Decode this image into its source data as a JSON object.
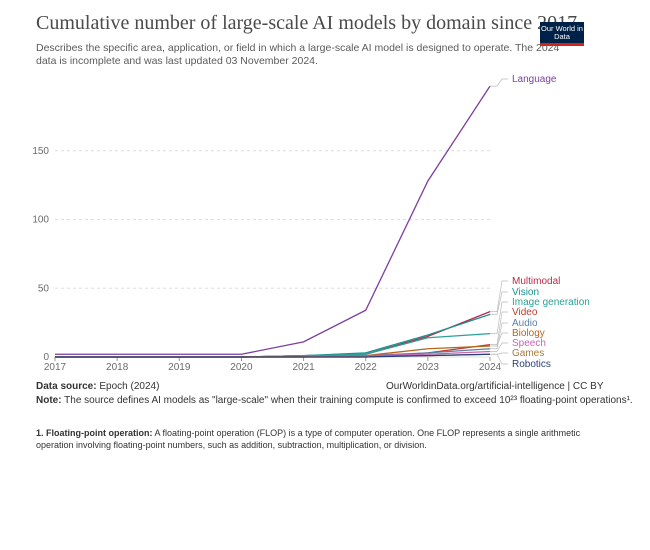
{
  "header": {
    "title": "Cumulative number of large-scale AI models by domain since 2017",
    "subtitle": "Describes the specific area, application, or field in which a large-scale AI model is designed to operate. The 2024 data is incomplete and was last updated 03 November 2024.",
    "logo_text": "Our World in Data"
  },
  "footer": {
    "source_label": "Data source:",
    "source_value": "Epoch (2024)",
    "credit": "OurWorldinData.org/artificial-intelligence | CC BY",
    "note_label": "Note:",
    "note_text": "The source defines AI models as \"large-scale\" when their training compute is confirmed to exceed 10²³ floating-point operations¹.",
    "footnote_label": "1. Floating-point operation:",
    "footnote_text": "A floating-point operation (FLOP) is a type of computer operation. One FLOP represents a single arithmetic operation involving floating-point numbers, such as addition, subtraction, multiplication, or division."
  },
  "chart_data": {
    "type": "line",
    "x": [
      2017,
      2018,
      2019,
      2020,
      2021,
      2022,
      2023,
      2024
    ],
    "xlim": [
      2017,
      2024
    ],
    "ylim": [
      0,
      200
    ],
    "yticks": [
      0,
      50,
      100,
      150
    ],
    "grid": true,
    "series": [
      {
        "name": "Language",
        "color": "#7b3f9e",
        "values": [
          2,
          2,
          2,
          2,
          11,
          34,
          128,
          197
        ]
      },
      {
        "name": "Multimodal",
        "color": "#b82b4a",
        "values": [
          0,
          0,
          0,
          0,
          1,
          2,
          15,
          33
        ]
      },
      {
        "name": "Vision",
        "color": "#1c8f8f",
        "values": [
          0,
          0,
          0,
          0,
          1,
          3,
          16,
          31
        ]
      },
      {
        "name": "Image generation",
        "color": "#2aa198",
        "values": [
          0,
          0,
          0,
          0,
          1,
          2,
          14,
          17
        ]
      },
      {
        "name": "Video",
        "color": "#c0392b",
        "values": [
          0,
          0,
          0,
          0,
          0,
          0,
          3,
          9
        ]
      },
      {
        "name": "Audio",
        "color": "#5b7fa6",
        "values": [
          0,
          0,
          0,
          0,
          0,
          1,
          3,
          6
        ]
      },
      {
        "name": "Biology",
        "color": "#b5651d",
        "values": [
          0,
          0,
          0,
          0,
          1,
          1,
          6,
          8
        ]
      },
      {
        "name": "Speech",
        "color": "#c467b1",
        "values": [
          0,
          0,
          0,
          0,
          0,
          1,
          2,
          4
        ]
      },
      {
        "name": "Games",
        "color": "#a57b3c",
        "values": [
          0,
          0,
          0,
          0,
          1,
          1,
          1,
          2
        ]
      },
      {
        "name": "Robotics",
        "color": "#2c3e7a",
        "values": [
          0,
          0,
          0,
          0,
          0,
          0,
          1,
          2
        ]
      }
    ]
  }
}
